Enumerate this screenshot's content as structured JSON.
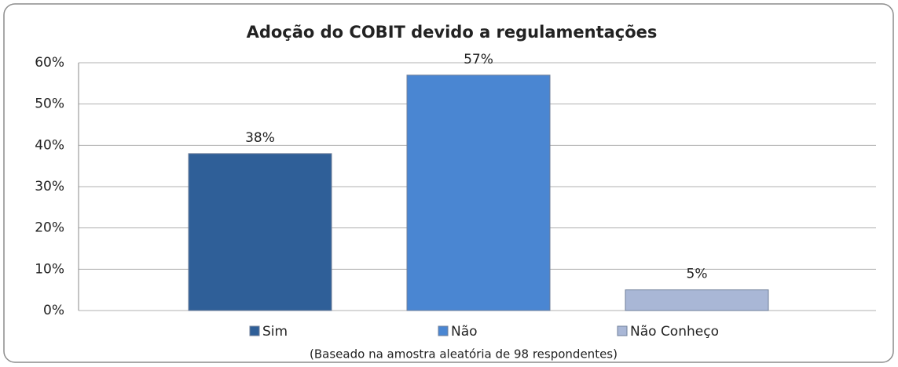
{
  "chart_data": {
    "type": "bar",
    "title": "Adoção do COBIT devido a regulamentações",
    "categories": [
      "Sim",
      "Não",
      "Não Conheço"
    ],
    "values": [
      38,
      57,
      5
    ],
    "value_labels": [
      "38%",
      "57%",
      "5%"
    ],
    "colors": [
      "#2f5f98",
      "#4a86d2",
      "#a9b7d6"
    ],
    "ylim": [
      0,
      60
    ],
    "yticks": [
      {
        "value": 0,
        "label": "0%"
      },
      {
        "value": 10,
        "label": "10%"
      },
      {
        "value": 20,
        "label": "20%"
      },
      {
        "value": 30,
        "label": "30%"
      },
      {
        "value": 40,
        "label": "40%"
      },
      {
        "value": 50,
        "label": "50%"
      },
      {
        "value": 60,
        "label": "60%"
      }
    ],
    "grid": true,
    "xlabel": "(Baseado na amostra aleatória de 98 respondentes)"
  }
}
